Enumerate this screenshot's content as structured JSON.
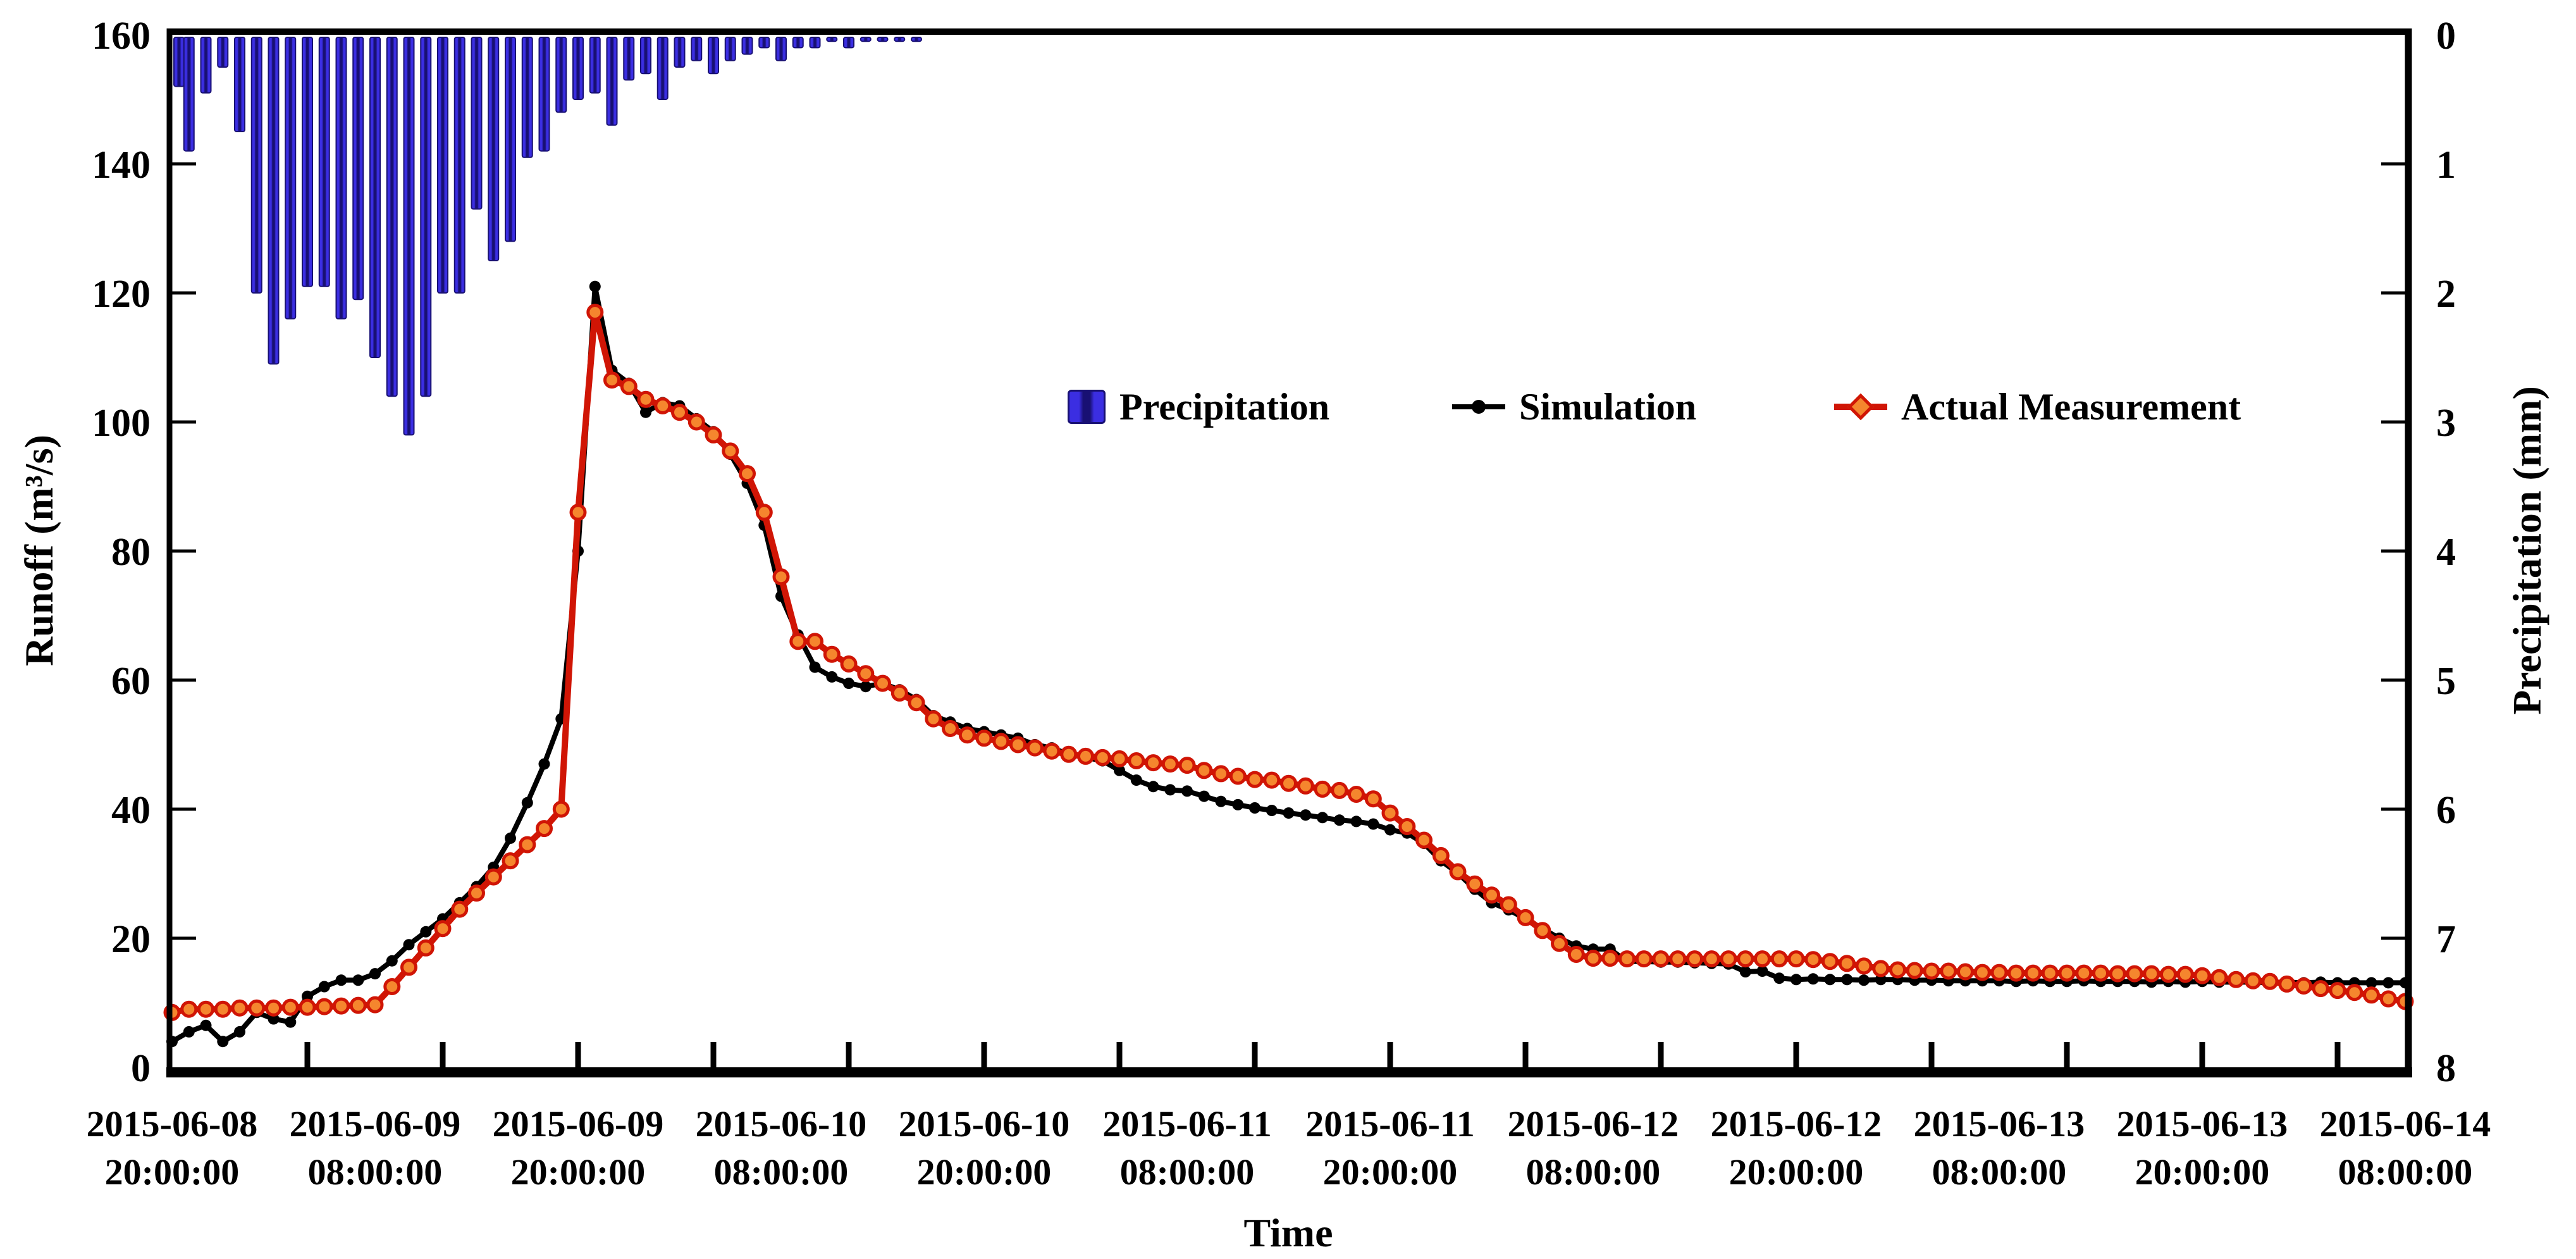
{
  "figure": {
    "x_axis_title": "Time",
    "y_left_title": "Runoff (m³/s)",
    "y_right_title": "Precipitation (mm)"
  },
  "legend": {
    "precipitation_label": "Precipitation",
    "simulation_label": "Simulation",
    "actual_label": "Actual Measurement"
  },
  "colors": {
    "bar_bright": "#3b2ee2",
    "bar_dark": "#181073",
    "simulation": "#000000",
    "actual_line": "#d01505",
    "actual_marker_fill": "#f5862e",
    "axis": "#000000"
  },
  "chart_data": {
    "type": "composite",
    "title": "",
    "x_start": "2015-06-08 20:00:00",
    "x_step_hours": 1,
    "x_total_hours": 132,
    "x_axis": {
      "title": "Time",
      "tick_labels": [
        [
          "2015-06-08",
          "20:00:00"
        ],
        [
          "2015-06-09",
          "08:00:00"
        ],
        [
          "2015-06-09",
          "20:00:00"
        ],
        [
          "2015-06-10",
          "08:00:00"
        ],
        [
          "2015-06-10",
          "20:00:00"
        ],
        [
          "2015-06-11",
          "08:00:00"
        ],
        [
          "2015-06-11",
          "20:00:00"
        ],
        [
          "2015-06-12",
          "08:00:00"
        ],
        [
          "2015-06-12",
          "20:00:00"
        ],
        [
          "2015-06-13",
          "08:00:00"
        ],
        [
          "2015-06-13",
          "20:00:00"
        ],
        [
          "2015-06-14",
          "08:00:00"
        ]
      ],
      "label_every_hours": 12,
      "minor_tick_every_hours": 8
    },
    "y_left": {
      "title": "Runoff (m³/s)",
      "min": 0,
      "max": 160,
      "ticks": [
        0,
        20,
        40,
        60,
        80,
        100,
        120,
        140,
        160
      ]
    },
    "y_right": {
      "title": "Precipitation (mm)",
      "min": 0,
      "max": 8,
      "inverted": true,
      "ticks": [
        0,
        1,
        2,
        3,
        4,
        5,
        6,
        7,
        8
      ]
    },
    "grid": false,
    "legend_position": "inside-top-middle",
    "series": [
      {
        "name": "Precipitation",
        "type": "bar",
        "axis": "right",
        "unit": "mm",
        "values": [
          0.4,
          0.9,
          0.45,
          0.25,
          0.75,
          2.0,
          2.55,
          2.2,
          1.95,
          1.95,
          2.2,
          2.05,
          2.5,
          2.8,
          3.1,
          2.8,
          2.0,
          2.0,
          1.35,
          1.75,
          1.6,
          0.95,
          0.9,
          0.6,
          0.5,
          0.45,
          0.7,
          0.35,
          0.3,
          0.5,
          0.25,
          0.2,
          0.3,
          0.2,
          0.15,
          0.1,
          0.2,
          0.1,
          0.1,
          0.05,
          0.1,
          0.05,
          0.05,
          0.05,
          0.05
        ]
      },
      {
        "name": "Simulation",
        "type": "line",
        "axis": "left",
        "unit": "m3/s",
        "values": [
          4,
          5.5,
          6.5,
          4,
          5.5,
          8.5,
          7.5,
          7,
          11,
          12.5,
          13.5,
          13.5,
          14.5,
          16.5,
          19,
          21,
          23,
          25.5,
          28,
          31,
          35.5,
          41,
          47,
          54,
          80,
          121,
          108,
          106,
          101.5,
          103,
          102.5,
          100.5,
          98.5,
          95,
          90.5,
          84,
          73,
          67,
          62,
          60.5,
          59.5,
          59,
          59.5,
          58.5,
          57,
          54.5,
          53.5,
          52.5,
          52,
          51.5,
          51,
          50,
          49.5,
          48.5,
          48,
          47.5,
          46,
          44.5,
          43.5,
          43,
          42.8,
          42,
          41.2,
          40.7,
          40.2,
          39.8,
          39.4,
          39.1,
          38.7,
          38.3,
          38.1,
          37.7,
          36.8,
          36.3,
          34.7,
          32,
          30.1,
          27.6,
          25.5,
          24.4,
          23,
          21.5,
          20,
          18.8,
          18.3,
          18.3,
          16.4,
          16.4,
          16.3,
          16.3,
          16.2,
          16.1,
          16,
          14.8,
          14.9,
          13.8,
          13.6,
          13.7,
          13.6,
          13.6,
          13.5,
          13.6,
          13.6,
          13.5,
          13.5,
          13.4,
          13.4,
          13.4,
          13.4,
          13.3,
          13.4,
          13.3,
          13.3,
          13.4,
          13.3,
          13.3,
          13.3,
          13.2,
          13.3,
          13.2,
          13.3,
          13.2,
          13.2,
          13.2,
          13.1,
          13.2,
          13.1,
          13.2,
          13.1,
          13.1,
          13.1,
          13.1,
          13.1
        ]
      },
      {
        "name": "Actual Measurement",
        "type": "line",
        "axis": "left",
        "unit": "m3/s",
        "values": [
          8.5,
          9,
          9,
          9,
          9.2,
          9.2,
          9.2,
          9.3,
          9.3,
          9.4,
          9.5,
          9.6,
          9.7,
          12.5,
          15.5,
          18.5,
          21.5,
          24.5,
          27,
          29.5,
          32,
          34.5,
          37,
          40,
          86,
          117,
          106.5,
          105.5,
          103.5,
          102.5,
          101.5,
          100,
          98,
          95.5,
          92,
          86,
          76,
          66,
          66,
          64,
          62.5,
          61,
          59.5,
          58,
          56.5,
          54,
          52.5,
          51.5,
          51,
          50.5,
          50,
          49.5,
          49,
          48.5,
          48.2,
          48,
          47.8,
          47.5,
          47.2,
          47,
          46.8,
          46,
          45.5,
          45.1,
          44.6,
          44.5,
          44,
          43.6,
          43.1,
          42.9,
          42.3,
          41.6,
          39.4,
          37.3,
          35.2,
          32.8,
          30.3,
          28.4,
          26.7,
          25.2,
          23.2,
          21.2,
          19.2,
          17.5,
          16.9,
          16.9,
          16.8,
          16.8,
          16.8,
          16.8,
          16.8,
          16.8,
          16.8,
          16.8,
          16.8,
          16.8,
          16.8,
          16.7,
          16.4,
          16.1,
          15.7,
          15.3,
          15.1,
          15,
          14.9,
          14.9,
          14.8,
          14.7,
          14.7,
          14.6,
          14.6,
          14.6,
          14.6,
          14.6,
          14.6,
          14.5,
          14.5,
          14.5,
          14.4,
          14.4,
          14.2,
          13.9,
          13.6,
          13.4,
          13.3,
          12.9,
          12.6,
          12.2,
          11.9,
          11.6,
          11.2,
          10.6,
          10.2
        ]
      }
    ]
  }
}
